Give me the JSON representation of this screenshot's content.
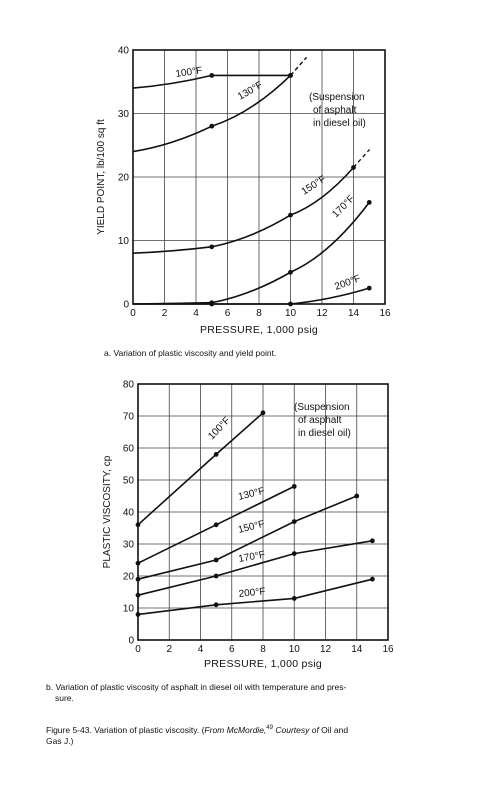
{
  "chart_data": [
    {
      "type": "line",
      "title": "",
      "annotation": [
        "(Suspension",
        "of asphalt",
        "in diesel oil)"
      ],
      "xlabel": "PRESSURE, 1,000 psig",
      "ylabel": "YIELD POINT, lb/100 sq ft",
      "xlim": [
        0,
        16
      ],
      "ylim": [
        0,
        40
      ],
      "xticks": [
        "0",
        "2",
        "4",
        "6",
        "8",
        "10",
        "12",
        "14",
        "16"
      ],
      "yticks": [
        "0",
        "10",
        "20",
        "30",
        "40"
      ],
      "grid": true,
      "series": [
        {
          "name": "100°F",
          "x": [
            0,
            5,
            10
          ],
          "y": [
            34,
            36,
            36
          ]
        },
        {
          "name": "130°F",
          "x": [
            0,
            5,
            10
          ],
          "y": [
            24,
            28,
            36
          ]
        },
        {
          "name": "150°F",
          "x": [
            0,
            5,
            10,
            14
          ],
          "y": [
            8,
            9,
            14,
            21.5
          ]
        },
        {
          "name": "170°F",
          "x": [
            0,
            5,
            10,
            15
          ],
          "y": [
            0,
            0.2,
            5,
            16
          ]
        },
        {
          "name": "200°F",
          "x": [
            0,
            5,
            10,
            15
          ],
          "y": [
            0,
            0,
            0,
            2.5
          ]
        }
      ],
      "caption": "a.  Variation of plastic viscosity and yield point."
    },
    {
      "type": "line",
      "title": "",
      "annotation": [
        "(Suspension",
        "of asphalt",
        "in diesel oil)"
      ],
      "xlabel": "PRESSURE, 1,000 psig",
      "ylabel": "PLASTIC VISCOSITY, cp",
      "xlim": [
        0,
        16
      ],
      "ylim": [
        0,
        80
      ],
      "xticks": [
        "0",
        "2",
        "4",
        "6",
        "8",
        "10",
        "12",
        "14",
        "16"
      ],
      "yticks": [
        "0",
        "10",
        "20",
        "30",
        "40",
        "50",
        "60",
        "70",
        "80"
      ],
      "grid": true,
      "series": [
        {
          "name": "100°F",
          "x": [
            0,
            5,
            8
          ],
          "y": [
            36,
            58,
            71
          ]
        },
        {
          "name": "130°F",
          "x": [
            0,
            5,
            10
          ],
          "y": [
            24,
            36,
            48
          ]
        },
        {
          "name": "150°F",
          "x": [
            0,
            5,
            10,
            14
          ],
          "y": [
            19,
            25,
            37,
            45
          ]
        },
        {
          "name": "170°F",
          "x": [
            0,
            5,
            10,
            15
          ],
          "y": [
            14,
            20,
            27,
            31
          ]
        },
        {
          "name": "200°F",
          "x": [
            0,
            5,
            10,
            15
          ],
          "y": [
            8,
            11,
            13,
            19
          ]
        }
      ],
      "caption": "b.  Variation of plastic viscosity of asphalt in diesel oil with temperature and pres-",
      "caption_cont": "sure."
    }
  ],
  "figure_caption": {
    "part1": "Figure 5-43. Variation of plastic viscosity. (",
    "italic1": "From McMordie,",
    "sup": "49",
    "part2": " Courtesy of",
    "italic2": " Oil and",
    "line2": "Gas J."
  }
}
